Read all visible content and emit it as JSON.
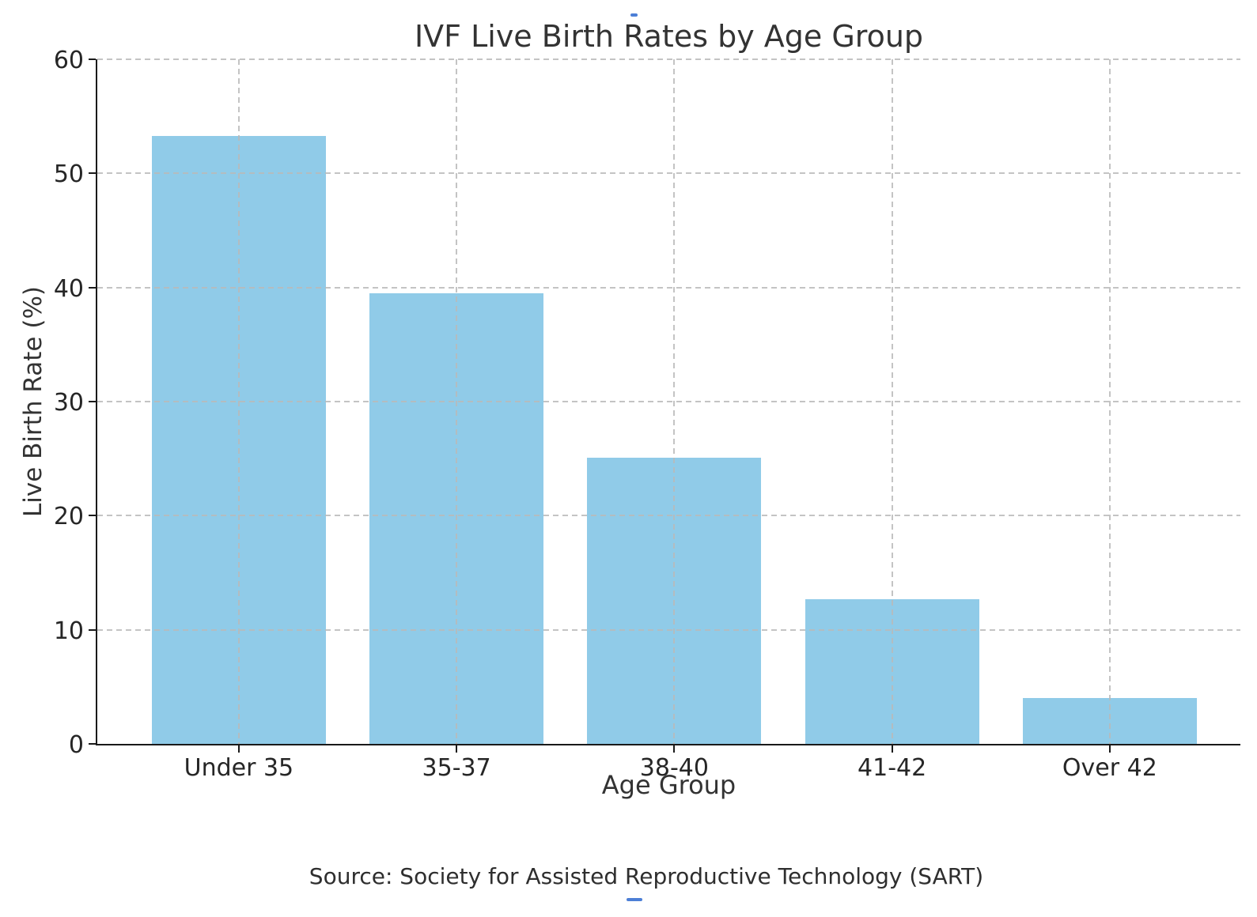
{
  "chart_data": {
    "type": "bar",
    "title": "IVF Live Birth Rates by Age Group",
    "xlabel": "Age Group",
    "ylabel": "Live Birth Rate (%)",
    "categories": [
      "Under 35",
      "35-37",
      "38-40",
      "41-42",
      "Over 42"
    ],
    "values": [
      53.3,
      39.5,
      25.1,
      12.7,
      4.0
    ],
    "ylim": [
      0,
      60
    ],
    "yticks": [
      0,
      10,
      20,
      30,
      40,
      50,
      60
    ],
    "grid": "dashed gridlines on both axes, drawn above bars",
    "legend": "none",
    "bar_color": "#90CBE8",
    "source_note": "Source: Society for Assisted Reproductive Technology (SART)"
  },
  "colors": {
    "background": "#ffffff",
    "bar": "#90CBE8",
    "gridline": "#b9b9b9",
    "axis": "#1a1a1a",
    "text": "#333333",
    "artifact_blue": "#4d7fd6"
  },
  "artifacts": {
    "top_cursor_dash": "small blue dash near top center",
    "bottom_underline_dash": "small blue underline below source text"
  }
}
